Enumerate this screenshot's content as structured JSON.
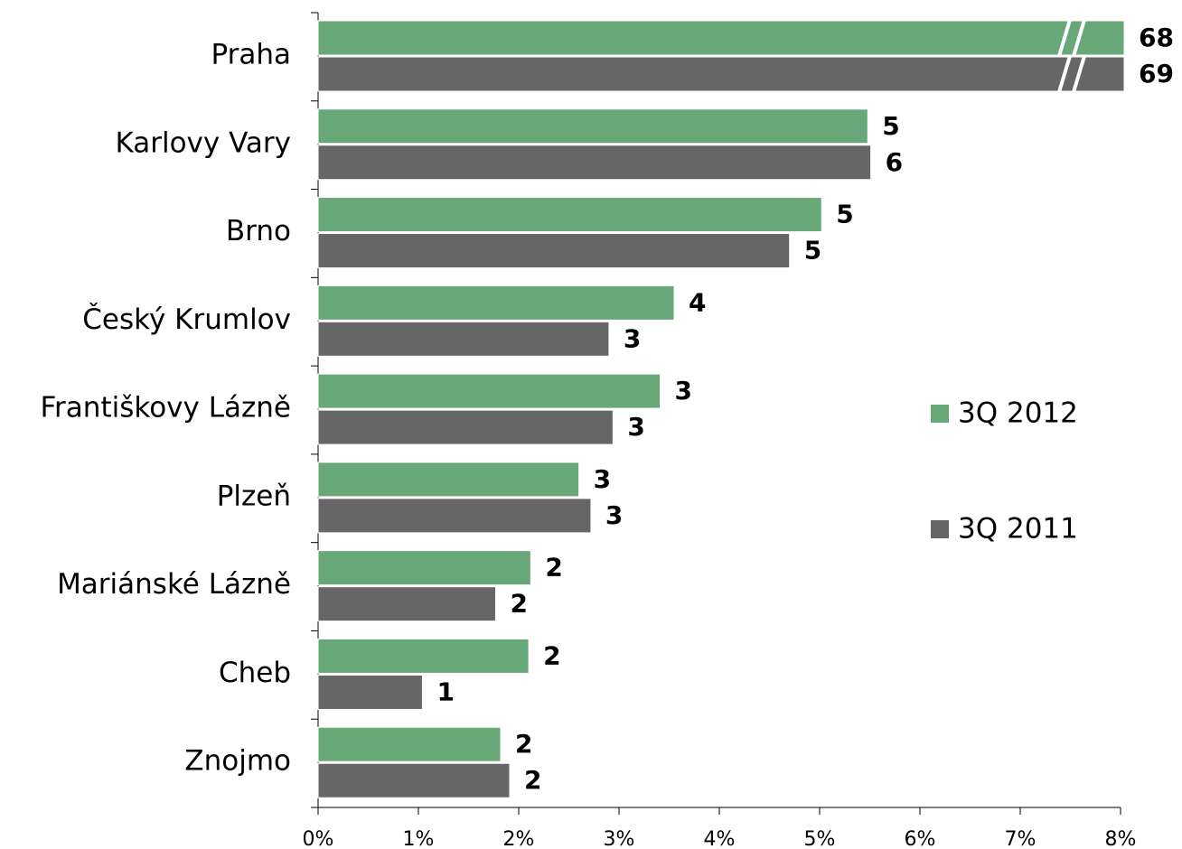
{
  "chart_data": {
    "type": "hbar",
    "categories": [
      "Praha",
      "Karlovy Vary",
      "Brno",
      "Český Krumlov",
      "Františkovy Lázně",
      "Plzeň",
      "Mariánské Lázně",
      "Cheb",
      "Znojmo"
    ],
    "series": [
      {
        "name": "3Q 2012",
        "color": "#68a878",
        "values": [
          68,
          5.48,
          5.02,
          3.55,
          3.41,
          2.6,
          2.12,
          2.1,
          1.82
        ],
        "value_labels": [
          "68",
          "5",
          "5",
          "4",
          "3",
          "3",
          "2",
          "2",
          "2"
        ]
      },
      {
        "name": "3Q 2011",
        "color": "#666666",
        "values": [
          69,
          5.51,
          4.7,
          2.9,
          2.94,
          2.72,
          1.77,
          1.04,
          1.91
        ],
        "value_labels": [
          "69",
          "6",
          "5",
          "3",
          "3",
          "3",
          "2",
          "1",
          "2"
        ]
      }
    ],
    "xlim": [
      0,
      8
    ],
    "xticks": [
      {
        "value": 0,
        "label": "0%"
      },
      {
        "value": 1,
        "label": "1%"
      },
      {
        "value": 2,
        "label": "2%"
      },
      {
        "value": 3,
        "label": "3%"
      },
      {
        "value": 4,
        "label": "4%"
      },
      {
        "value": 5,
        "label": "5%"
      },
      {
        "value": 6,
        "label": "6%"
      },
      {
        "value": 7,
        "label": "7%"
      },
      {
        "value": 8,
        "label": "8%"
      }
    ]
  }
}
